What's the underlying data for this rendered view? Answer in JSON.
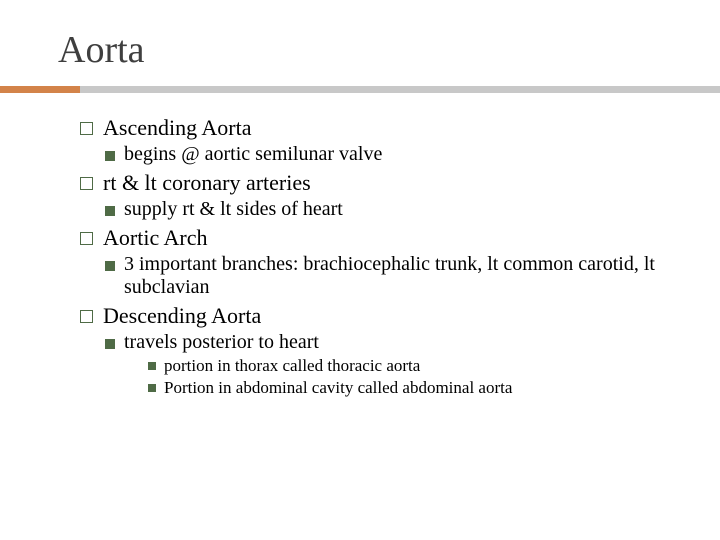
{
  "title": "Aorta",
  "colors": {
    "title_text": "#3f3f3f",
    "body_text": "#000000",
    "underline_gray": "#c8c8c8",
    "underline_orange": "#d38349",
    "bullet_green": "#4f6b46",
    "background": "#ffffff"
  },
  "typography": {
    "title_fontsize": 38,
    "level1_fontsize": 22,
    "level2_fontsize": 20,
    "level3_fontsize": 17,
    "font_family": "Georgia, Times New Roman, serif"
  },
  "items": {
    "i1": "Ascending Aorta",
    "i1_1": "begins @ aortic semilunar valve",
    "i2": "rt & lt coronary arteries",
    "i2_1": "supply rt & lt sides of heart",
    "i3": "Aortic Arch",
    "i3_1": "3 important branches: brachiocephalic trunk, lt common carotid, lt subclavian",
    "i4": "Descending Aorta",
    "i4_1": "travels posterior to heart",
    "i4_1_1": "portion  in thorax called thoracic aorta",
    "i4_1_2": "Portion in abdominal cavity called abdominal aorta"
  }
}
